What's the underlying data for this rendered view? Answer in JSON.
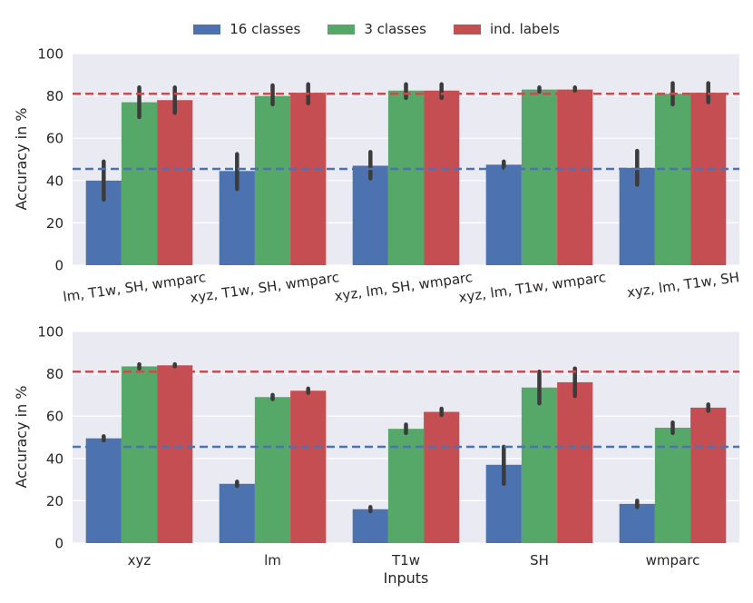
{
  "chart_data": [
    {
      "type": "bar",
      "title": "",
      "xlabel": "",
      "ylabel": "Accuracy in %",
      "ylim": [
        0,
        100
      ],
      "yticks": [
        0,
        20,
        40,
        60,
        80,
        100
      ],
      "grid": true,
      "tick_rotation": "rotated",
      "categories": [
        "lm, T1w, SH, wmparc",
        "xyz, T1w, SH, wmparc",
        "xyz, lm, SH, wmparc",
        "xyz, lm, T1w, wmparc",
        "xyz, lm, T1w, SH"
      ],
      "series": [
        {
          "name": "16 classes",
          "values": [
            40,
            44.5,
            47,
            47.5,
            46
          ],
          "err_low": [
            31,
            36,
            41,
            46,
            38
          ],
          "err_high": [
            49,
            52.5,
            53.5,
            49,
            54
          ]
        },
        {
          "name": "3 classes",
          "values": [
            77,
            80,
            82.5,
            83,
            81
          ],
          "err_low": [
            70,
            76,
            79,
            82,
            76
          ],
          "err_high": [
            84,
            85,
            85.5,
            84,
            86
          ]
        },
        {
          "name": "ind. labels",
          "values": [
            78,
            81.5,
            82.5,
            83,
            81.5
          ],
          "err_low": [
            72,
            76.5,
            79,
            82.5,
            77
          ],
          "err_high": [
            84,
            85.5,
            85.5,
            84,
            86
          ]
        }
      ],
      "reference_lines": [
        {
          "series": "16 classes",
          "y": 45.5,
          "style": "dashed"
        },
        {
          "series": "ind. labels",
          "y": 81,
          "style": "dashed"
        }
      ]
    },
    {
      "type": "bar",
      "title": "",
      "xlabel": "Inputs",
      "ylabel": "Accuracy in %",
      "ylim": [
        0,
        100
      ],
      "yticks": [
        0,
        20,
        40,
        60,
        80,
        100
      ],
      "grid": true,
      "tick_rotation": "none",
      "categories": [
        "xyz",
        "lm",
        "T1w",
        "SH",
        "wmparc"
      ],
      "series": [
        {
          "name": "16 classes",
          "values": [
            49.5,
            28,
            16,
            37,
            18.5
          ],
          "err_low": [
            48.5,
            27,
            15,
            28,
            17
          ],
          "err_high": [
            50.5,
            29,
            17,
            45.5,
            20
          ]
        },
        {
          "name": "3 classes",
          "values": [
            83.5,
            69,
            54,
            73.5,
            54.5
          ],
          "err_low": [
            82.5,
            68,
            52,
            66,
            52
          ],
          "err_high": [
            84.5,
            70,
            56,
            81,
            57
          ]
        },
        {
          "name": "ind. labels",
          "values": [
            84,
            72,
            62,
            76,
            64
          ],
          "err_low": [
            83.5,
            71,
            60.5,
            69.5,
            62.5
          ],
          "err_high": [
            84.5,
            73,
            63.5,
            82.5,
            65.5
          ]
        }
      ],
      "reference_lines": [
        {
          "series": "16 classes",
          "y": 45.5,
          "style": "dashed"
        },
        {
          "series": "ind. labels",
          "y": 81,
          "style": "dashed"
        }
      ]
    }
  ],
  "legend": {
    "placement": "top-center",
    "items": [
      {
        "label": "16 classes",
        "color": "#4c72b0"
      },
      {
        "label": "3 classes",
        "color": "#55a868"
      },
      {
        "label": "ind. labels",
        "color": "#c44e52"
      }
    ]
  },
  "colors": {
    "background": "#eaeaf2",
    "grid": "#ffffff",
    "error_bar": "#3b3b3b",
    "series": [
      "#4c72b0",
      "#55a868",
      "#c44e52"
    ]
  }
}
